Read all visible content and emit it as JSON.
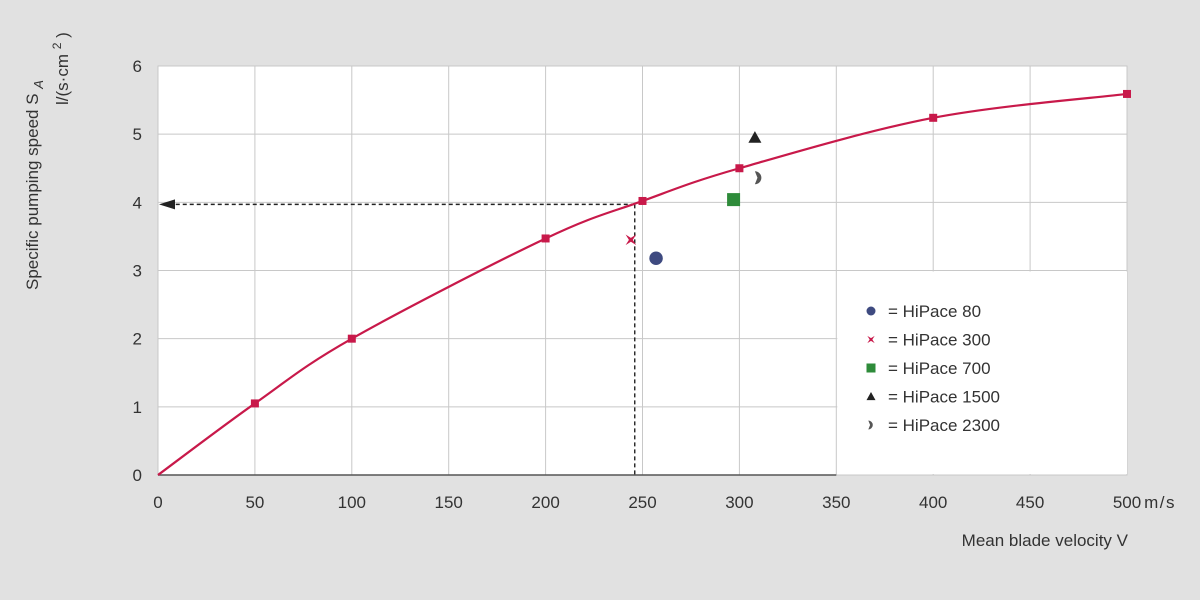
{
  "chart_data": {
    "type": "scatter",
    "xlabel": "Mean blade velocity V",
    "x_unit": "m/s",
    "ylabel": "Specific pumping speed S",
    "ylabel_subscript": "A",
    "y_unit_prefix": "l/(s·cm",
    "y_unit_exp": "2",
    "y_unit_suffix": ")",
    "xlim": [
      0,
      500
    ],
    "ylim": [
      0,
      6
    ],
    "x_ticks": [
      "0",
      "50",
      "100",
      "150",
      "200",
      "250",
      "300",
      "350",
      "400",
      "450",
      "500"
    ],
    "y_ticks": [
      "0",
      "1",
      "2",
      "3",
      "4",
      "5",
      "6"
    ],
    "grid": true,
    "legend_position": "center-right",
    "curve": {
      "color": "#c8194a",
      "x": [
        0,
        50,
        100,
        200,
        250,
        300,
        400,
        500
      ],
      "y": [
        0,
        1.05,
        2.0,
        3.47,
        4.02,
        4.5,
        5.24,
        5.59
      ]
    },
    "reference_point": {
      "x": 246,
      "y": 3.97
    },
    "series": [
      {
        "name": "HiPace 80",
        "marker": "circle",
        "color": "#3e4a80",
        "x": 257,
        "y": 3.18
      },
      {
        "name": "HiPace 300",
        "marker": "star",
        "color": "#c8194a",
        "x": 244,
        "y": 3.45
      },
      {
        "name": "HiPace 700",
        "marker": "square",
        "color": "#2e8b3a",
        "x": 297,
        "y": 4.04
      },
      {
        "name": "HiPace 1500",
        "marker": "triangle",
        "color": "#222222",
        "x": 308,
        "y": 4.95
      },
      {
        "name": "HiPace 2300",
        "marker": "half-circle",
        "color": "#555555",
        "x": 310,
        "y": 4.36
      }
    ],
    "legend_separator": "="
  }
}
